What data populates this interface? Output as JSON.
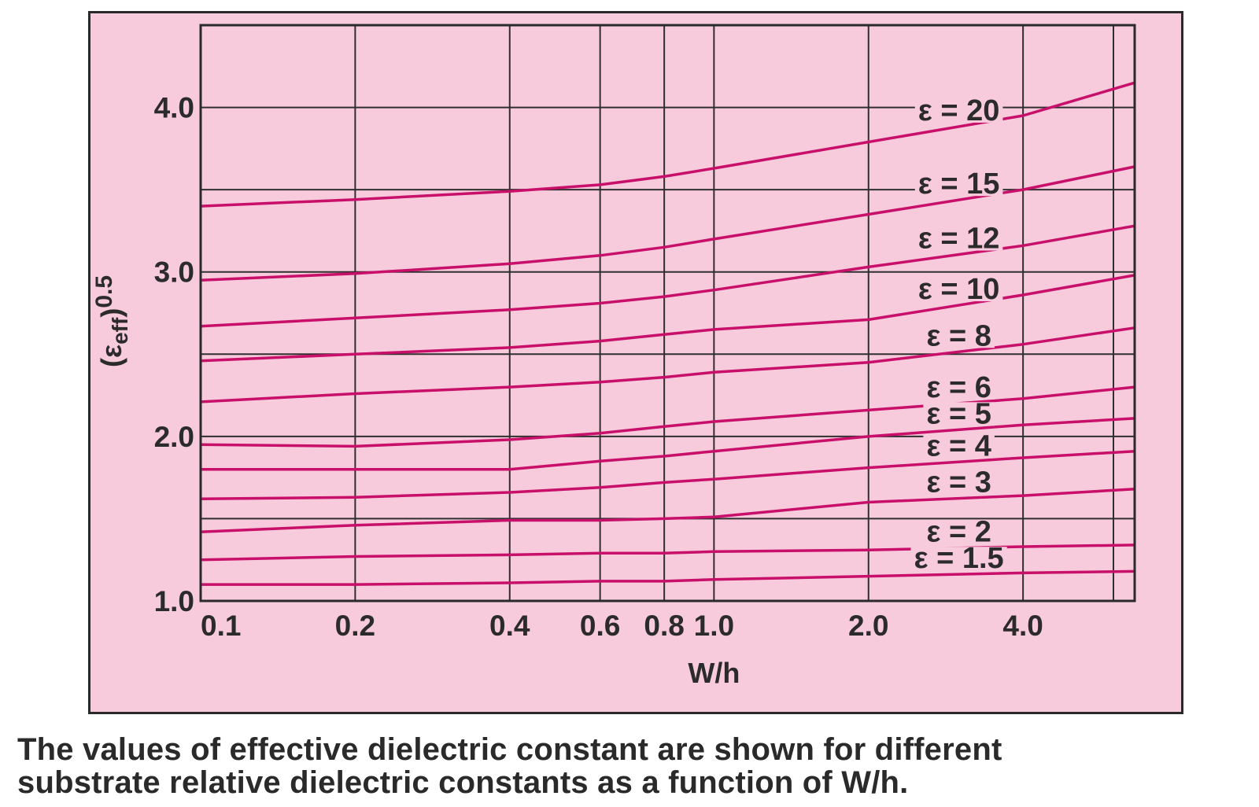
{
  "chart_data": {
    "type": "line",
    "title": "",
    "xlabel": "W/h",
    "ylabel": "(εeff)0.5",
    "ylabel_parts": {
      "symbol": "(ε",
      "sub": "eff",
      "close": ")",
      "sup": "0.5"
    },
    "x_scale": "log",
    "xlim": [
      0.1,
      6.6
    ],
    "ylim": [
      1.0,
      4.5
    ],
    "x_ticks": [
      {
        "value": 0.1,
        "label": "0.1"
      },
      {
        "value": 0.2,
        "label": "0.2"
      },
      {
        "value": 0.4,
        "label": "0.4"
      },
      {
        "value": 0.6,
        "label": "0.6"
      },
      {
        "value": 0.8,
        "label": "0.8"
      },
      {
        "value": 1.0,
        "label": "1.0"
      },
      {
        "value": 2.0,
        "label": "2.0"
      },
      {
        "value": 4.0,
        "label": "4.0"
      }
    ],
    "x_gridlines": [
      0.2,
      0.4,
      0.6,
      0.8,
      1.0,
      2.0,
      4.0,
      6.0
    ],
    "y_ticks": [
      {
        "value": 1.0,
        "label": "1.0"
      },
      {
        "value": 2.0,
        "label": "2.0"
      },
      {
        "value": 3.0,
        "label": "3.0"
      },
      {
        "value": 4.0,
        "label": "4.0"
      }
    ],
    "y_gridlines": [
      1.5,
      2.0,
      2.5,
      3.0,
      3.5,
      4.0
    ],
    "grid": true,
    "colors": {
      "frame_bg": "#f8cbdc",
      "frame_border": "#2a2a2a",
      "grid": "#2f2f2f",
      "curve": "#c8106a",
      "text": "#2b2b2b"
    },
    "series": [
      {
        "name": "ε = 20",
        "x": [
          0.1,
          0.2,
          0.4,
          0.6,
          0.8,
          1.0,
          2.0,
          4.0,
          6.6
        ],
        "y": [
          3.4,
          3.44,
          3.49,
          3.53,
          3.58,
          3.63,
          3.79,
          3.95,
          4.15
        ]
      },
      {
        "name": "ε = 15",
        "x": [
          0.1,
          0.2,
          0.4,
          0.6,
          0.8,
          1.0,
          2.0,
          4.0,
          6.6
        ],
        "y": [
          2.95,
          2.99,
          3.05,
          3.1,
          3.15,
          3.2,
          3.35,
          3.5,
          3.64
        ]
      },
      {
        "name": "ε = 12",
        "x": [
          0.1,
          0.2,
          0.4,
          0.6,
          0.8,
          1.0,
          2.0,
          4.0,
          6.6
        ],
        "y": [
          2.67,
          2.72,
          2.77,
          2.81,
          2.85,
          2.89,
          3.03,
          3.16,
          3.28
        ]
      },
      {
        "name": "ε = 10",
        "x": [
          0.1,
          0.2,
          0.4,
          0.6,
          0.8,
          1.0,
          2.0,
          4.0,
          6.6
        ],
        "y": [
          2.46,
          2.5,
          2.54,
          2.58,
          2.62,
          2.65,
          2.71,
          2.86,
          2.98
        ]
      },
      {
        "name": "ε = 8",
        "x": [
          0.1,
          0.2,
          0.4,
          0.6,
          0.8,
          1.0,
          2.0,
          4.0,
          6.6
        ],
        "y": [
          2.21,
          2.26,
          2.3,
          2.33,
          2.36,
          2.39,
          2.45,
          2.56,
          2.66
        ]
      },
      {
        "name": "ε = 6",
        "x": [
          0.1,
          0.2,
          0.4,
          0.6,
          0.8,
          1.0,
          2.0,
          4.0,
          6.6
        ],
        "y": [
          1.95,
          1.94,
          1.98,
          2.02,
          2.06,
          2.09,
          2.16,
          2.23,
          2.3
        ]
      },
      {
        "name": "ε = 5",
        "x": [
          0.1,
          0.2,
          0.4,
          0.6,
          0.8,
          1.0,
          2.0,
          4.0,
          6.6
        ],
        "y": [
          1.8,
          1.8,
          1.8,
          1.85,
          1.88,
          1.91,
          2.0,
          2.07,
          2.11
        ]
      },
      {
        "name": "ε = 4",
        "x": [
          0.1,
          0.2,
          0.4,
          0.6,
          0.8,
          1.0,
          2.0,
          4.0,
          6.6
        ],
        "y": [
          1.62,
          1.63,
          1.66,
          1.69,
          1.72,
          1.74,
          1.81,
          1.87,
          1.91
        ]
      },
      {
        "name": "ε = 3",
        "x": [
          0.1,
          0.2,
          0.4,
          0.6,
          0.8,
          1.0,
          2.0,
          4.0,
          6.6
        ],
        "y": [
          1.42,
          1.46,
          1.49,
          1.49,
          1.5,
          1.51,
          1.6,
          1.64,
          1.68
        ]
      },
      {
        "name": "ε = 2",
        "x": [
          0.1,
          0.2,
          0.4,
          0.6,
          0.8,
          1.0,
          2.0,
          4.0,
          6.6
        ],
        "y": [
          1.25,
          1.27,
          1.28,
          1.29,
          1.29,
          1.3,
          1.31,
          1.33,
          1.34
        ]
      },
      {
        "name": "ε = 1.5",
        "x": [
          0.1,
          0.2,
          0.4,
          0.6,
          0.8,
          1.0,
          2.0,
          4.0,
          6.6
        ],
        "y": [
          1.1,
          1.1,
          1.11,
          1.12,
          1.12,
          1.13,
          1.15,
          1.17,
          1.18
        ]
      }
    ]
  },
  "caption": {
    "line1": "The values of effective dielectric constant are shown for different",
    "line2": "substrate relative dielectric constants as a function of W/h."
  }
}
